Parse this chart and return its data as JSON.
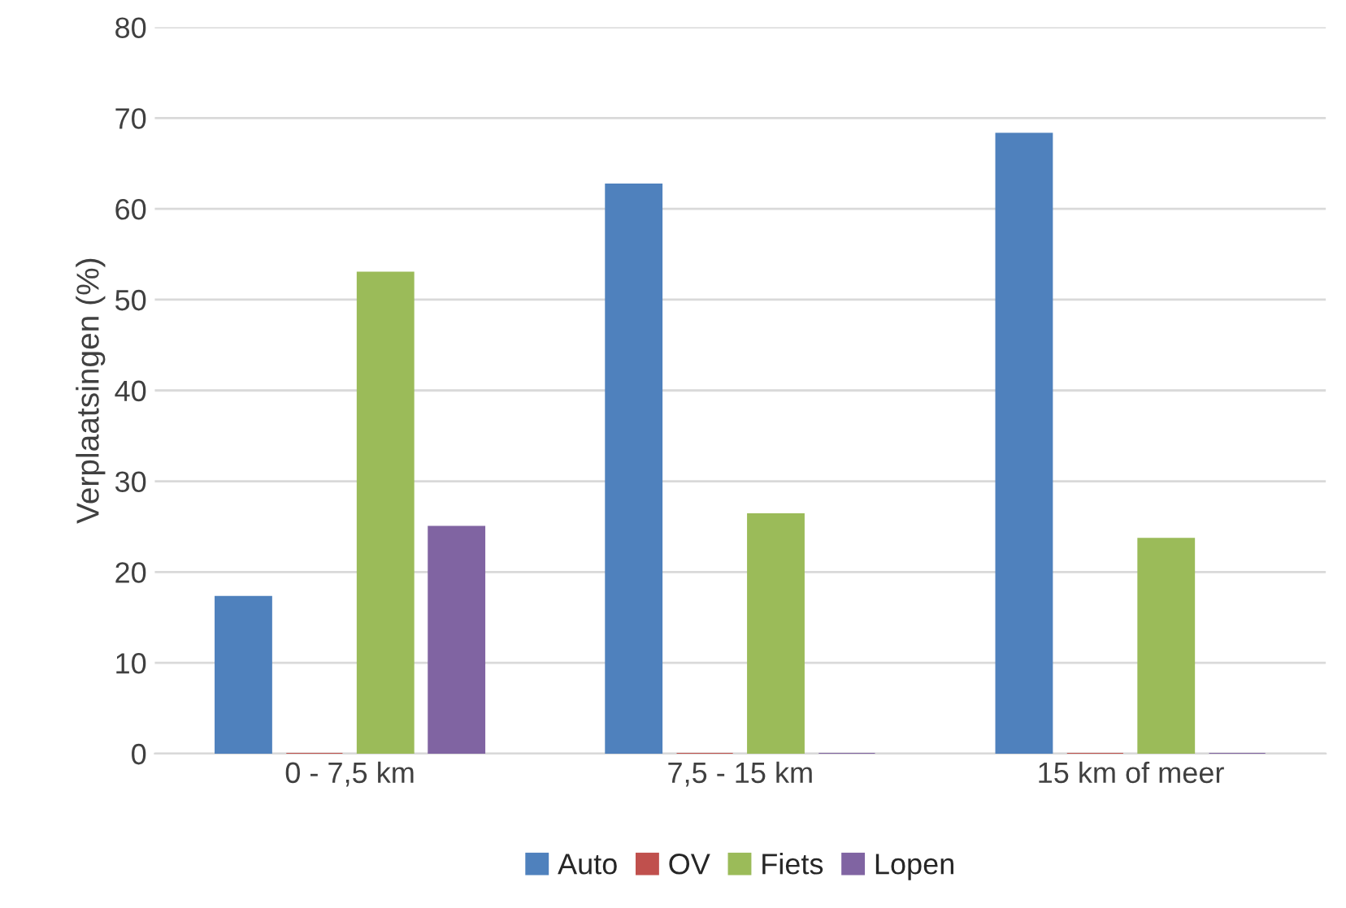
{
  "chart_data": {
    "type": "bar",
    "ylabel": "Verplaatsingen (%)",
    "categories": [
      "0 - 7,5 km",
      "7,5 - 15 km",
      "15 km of meer"
    ],
    "series": [
      {
        "name": "Auto",
        "color": "#4f81bd",
        "values": [
          17.3,
          62.7,
          68.3
        ]
      },
      {
        "name": "OV",
        "color": "#c0504d",
        "values": [
          0,
          0,
          0
        ]
      },
      {
        "name": "Fiets",
        "color": "#9bbb59",
        "values": [
          53.0,
          26.4,
          23.7
        ]
      },
      {
        "name": "Lopen",
        "color": "#8064a2",
        "values": [
          25.0,
          0,
          0
        ]
      }
    ],
    "ylim": [
      0,
      80
    ],
    "yticks": [
      0,
      10,
      20,
      30,
      40,
      50,
      60,
      70,
      80
    ],
    "grid": "y",
    "legend": "bottom"
  }
}
